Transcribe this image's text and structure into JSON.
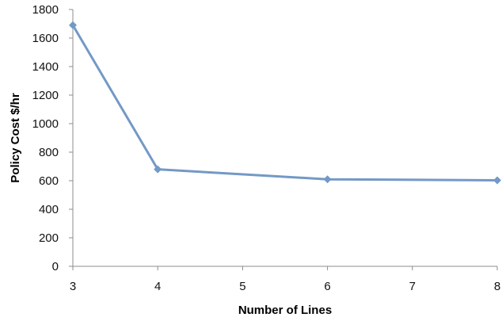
{
  "chart_data": {
    "type": "line",
    "title": "",
    "xlabel": "Number of Lines",
    "ylabel": "Policy Cost $/hr",
    "x_ticks": [
      "3",
      "4",
      "5",
      "6",
      "7",
      "8"
    ],
    "y_ticks": [
      "0",
      "200",
      "400",
      "600",
      "800",
      "1000",
      "1200",
      "1400",
      "1600",
      "1800"
    ],
    "ylim": [
      0,
      1800
    ],
    "grid": false,
    "legend": "none",
    "series": [
      {
        "color": "#7399c6",
        "points": [
          {
            "x": 3,
            "y": 1690
          },
          {
            "x": 4,
            "y": 680
          },
          {
            "x": 6,
            "y": 610
          },
          {
            "x": 8,
            "y": 603
          }
        ]
      }
    ]
  }
}
